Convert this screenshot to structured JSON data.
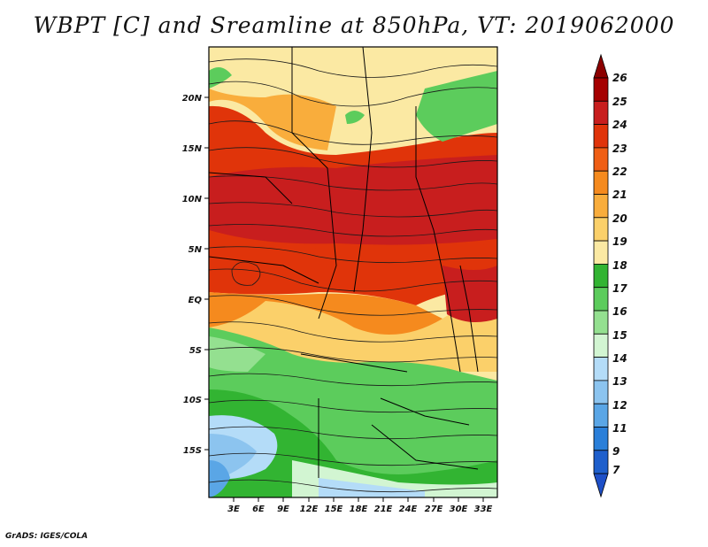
{
  "title": "WBPT [C] and Sreamline at 850hPa, VT: 2019062000",
  "credit": "GrADS: IGES/COLA",
  "map": {
    "lat_labels": [
      "20N",
      "15N",
      "10N",
      "5N",
      "EQ",
      "5S",
      "10S",
      "15S"
    ],
    "lon_labels": [
      "3E",
      "6E",
      "9E",
      "12E",
      "15E",
      "18E",
      "21E",
      "24E",
      "27E",
      "30E",
      "33E"
    ]
  },
  "colorbar": {
    "levels": [
      "26",
      "25",
      "24",
      "23",
      "22",
      "21",
      "20",
      "19",
      "18",
      "17",
      "16",
      "15",
      "14",
      "13",
      "12",
      "11",
      "9",
      "7"
    ],
    "colors": [
      "#a50000",
      "#c81e1e",
      "#e0340a",
      "#ef5e14",
      "#f58a1e",
      "#f9ad3c",
      "#fbd06a",
      "#fbe9a3",
      "#32b432",
      "#5ccc5c",
      "#94e090",
      "#d2f5d2",
      "#b4dcf8",
      "#8cc4ef",
      "#5aa6e6",
      "#2a7fd9",
      "#1e5fcc"
    ],
    "top_arrow_color": "#8c0000",
    "bottom_arrow_color": "#1e50c8"
  }
}
